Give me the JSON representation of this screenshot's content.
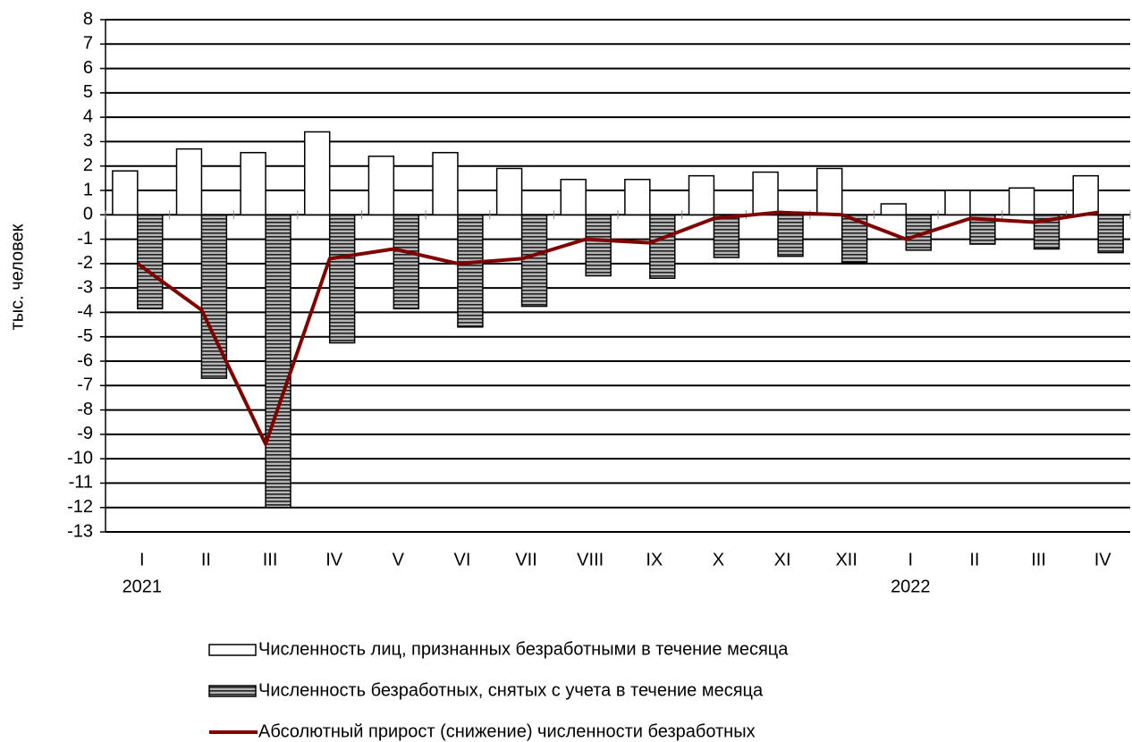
{
  "chart_data": {
    "type": "bar_line",
    "y_label": "тыс. человек",
    "categories": [
      "I",
      "II",
      "III",
      "IV",
      "V",
      "VI",
      "VII",
      "VIII",
      "IX",
      "X",
      "XI",
      "XII",
      "I",
      "II",
      "III",
      "IV"
    ],
    "year_labels": [
      "2021",
      null,
      null,
      null,
      null,
      null,
      null,
      null,
      null,
      null,
      null,
      null,
      "2022",
      null,
      null,
      null
    ],
    "series": [
      {
        "name": "Численность лиц, признанных безработными в течение месяца",
        "type": "bar",
        "color": "#ffffff",
        "values": [
          1.8,
          2.7,
          2.55,
          3.4,
          2.4,
          2.55,
          1.9,
          1.45,
          1.45,
          1.6,
          1.75,
          1.9,
          0.45,
          1.0,
          1.1,
          1.6
        ]
      },
      {
        "name": "Численность безработных, снятых с учета в течение месяца",
        "type": "bar",
        "color": "#9a9a9a",
        "values": [
          -3.85,
          -6.7,
          -12.0,
          -5.25,
          -3.85,
          -4.6,
          -3.75,
          -2.5,
          -2.6,
          -1.75,
          -1.7,
          -1.95,
          -1.45,
          -1.2,
          -1.4,
          -1.55
        ]
      },
      {
        "name": "Абсолютный прирост (снижение) численности безработных",
        "type": "line",
        "color": "#7f0000",
        "values": [
          -2.0,
          -3.9,
          -9.4,
          -1.8,
          -1.4,
          -2.0,
          -1.8,
          -1.0,
          -1.15,
          -0.15,
          0.1,
          0.0,
          -1.0,
          -0.15,
          -0.3,
          0.1
        ]
      }
    ],
    "ylim": [
      -13,
      8
    ],
    "yticks": [
      -13,
      -12,
      -11,
      -10,
      -9,
      -8,
      -7,
      -6,
      -5,
      -4,
      -3,
      -2,
      -1,
      0,
      1,
      2,
      3,
      4,
      5,
      6,
      7,
      8
    ],
    "grid": true,
    "legend": "bottom"
  }
}
